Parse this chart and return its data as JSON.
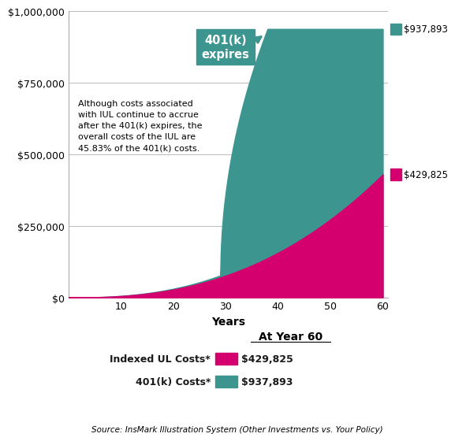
{
  "xlabel": "Years",
  "xlim": [
    0,
    61
  ],
  "ylim": [
    0,
    1000000
  ],
  "yticks": [
    0,
    250000,
    500000,
    750000,
    1000000
  ],
  "ytick_labels": [
    "$0",
    "$250,000",
    "$500,000",
    "$750,000",
    "$1,000,000"
  ],
  "xticks": [
    10,
    20,
    30,
    40,
    50,
    60
  ],
  "color_401k": "#3d9590",
  "color_iul": "#d4006e",
  "annotation_text": "Although costs associated\nwith IUL continue to accrue\nafter the 401(k) expires, the\noverall costs of the IUL are\n45.83% of the 401(k) costs.",
  "box_text": "401(k)\nexpires",
  "iul_final": 429825,
  "k401_final": 937893,
  "legend_title": "At Year 60",
  "source_text": "Source: InsMark Illustration System (Other Investments vs. Your Policy)",
  "bg_color": "#ffffff"
}
